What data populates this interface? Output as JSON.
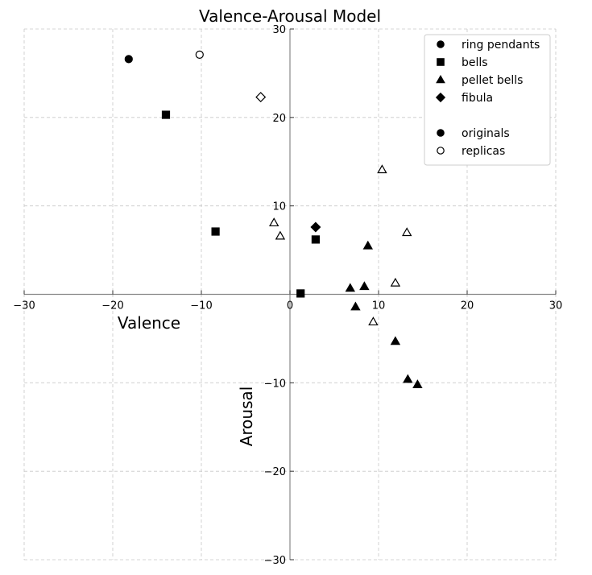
{
  "chart_data": {
    "type": "scatter",
    "title": "Valence-Arousal Model",
    "xlabel": "Valence",
    "ylabel": "Arousal",
    "xlim": [
      -30,
      30
    ],
    "ylim": [
      -30,
      30
    ],
    "xticks": [
      -30,
      -20,
      -10,
      0,
      10,
      20,
      30
    ],
    "yticks": [
      -30,
      -20,
      -10,
      10,
      20,
      30
    ],
    "xtick_labels": [
      "−30",
      "−20",
      "−10",
      "0",
      "10",
      "20",
      "30"
    ],
    "ytick_labels": [
      "−30",
      "−20",
      "−10",
      "10",
      "20",
      "30"
    ],
    "grid": true,
    "legend_position": "top-right",
    "legend": [
      {
        "label": "ring pendants",
        "marker": "circle",
        "filled": true
      },
      {
        "label": "bells",
        "marker": "square",
        "filled": true
      },
      {
        "label": "pellet bells",
        "marker": "triangle",
        "filled": true
      },
      {
        "label": "fibula",
        "marker": "diamond",
        "filled": true
      },
      {
        "label": "",
        "marker": "none",
        "filled": true
      },
      {
        "label": "originals",
        "marker": "circle",
        "filled": true
      },
      {
        "label": "replicas",
        "marker": "circle",
        "filled": false
      }
    ],
    "points": [
      {
        "x": -18.2,
        "y": 26.6,
        "marker": "circle",
        "filled": true
      },
      {
        "x": -10.2,
        "y": 27.1,
        "marker": "circle",
        "filled": false
      },
      {
        "x": -14.0,
        "y": 20.3,
        "marker": "square",
        "filled": true
      },
      {
        "x": -3.3,
        "y": 22.3,
        "marker": "diamond",
        "filled": false
      },
      {
        "x": -8.4,
        "y": 7.1,
        "marker": "square",
        "filled": true
      },
      {
        "x": -1.8,
        "y": 8.1,
        "marker": "triangle",
        "filled": false
      },
      {
        "x": -1.1,
        "y": 6.6,
        "marker": "triangle",
        "filled": false
      },
      {
        "x": 2.9,
        "y": 7.6,
        "marker": "diamond",
        "filled": true
      },
      {
        "x": 2.9,
        "y": 6.2,
        "marker": "square",
        "filled": true
      },
      {
        "x": 1.2,
        "y": 0.1,
        "marker": "square",
        "filled": true
      },
      {
        "x": 6.8,
        "y": 0.7,
        "marker": "triangle",
        "filled": true
      },
      {
        "x": 8.4,
        "y": 0.9,
        "marker": "triangle",
        "filled": true
      },
      {
        "x": 8.8,
        "y": 5.5,
        "marker": "triangle",
        "filled": true
      },
      {
        "x": 7.4,
        "y": -1.4,
        "marker": "triangle",
        "filled": true
      },
      {
        "x": 10.4,
        "y": 14.1,
        "marker": "triangle",
        "filled": false
      },
      {
        "x": 13.2,
        "y": 7.0,
        "marker": "triangle",
        "filled": false
      },
      {
        "x": 11.9,
        "y": 1.3,
        "marker": "triangle",
        "filled": false
      },
      {
        "x": 9.4,
        "y": -3.1,
        "marker": "triangle",
        "filled": false
      },
      {
        "x": 11.9,
        "y": -5.3,
        "marker": "triangle",
        "filled": true
      },
      {
        "x": 13.3,
        "y": -9.6,
        "marker": "triangle",
        "filled": true
      },
      {
        "x": 14.4,
        "y": -10.2,
        "marker": "triangle",
        "filled": true
      }
    ]
  }
}
